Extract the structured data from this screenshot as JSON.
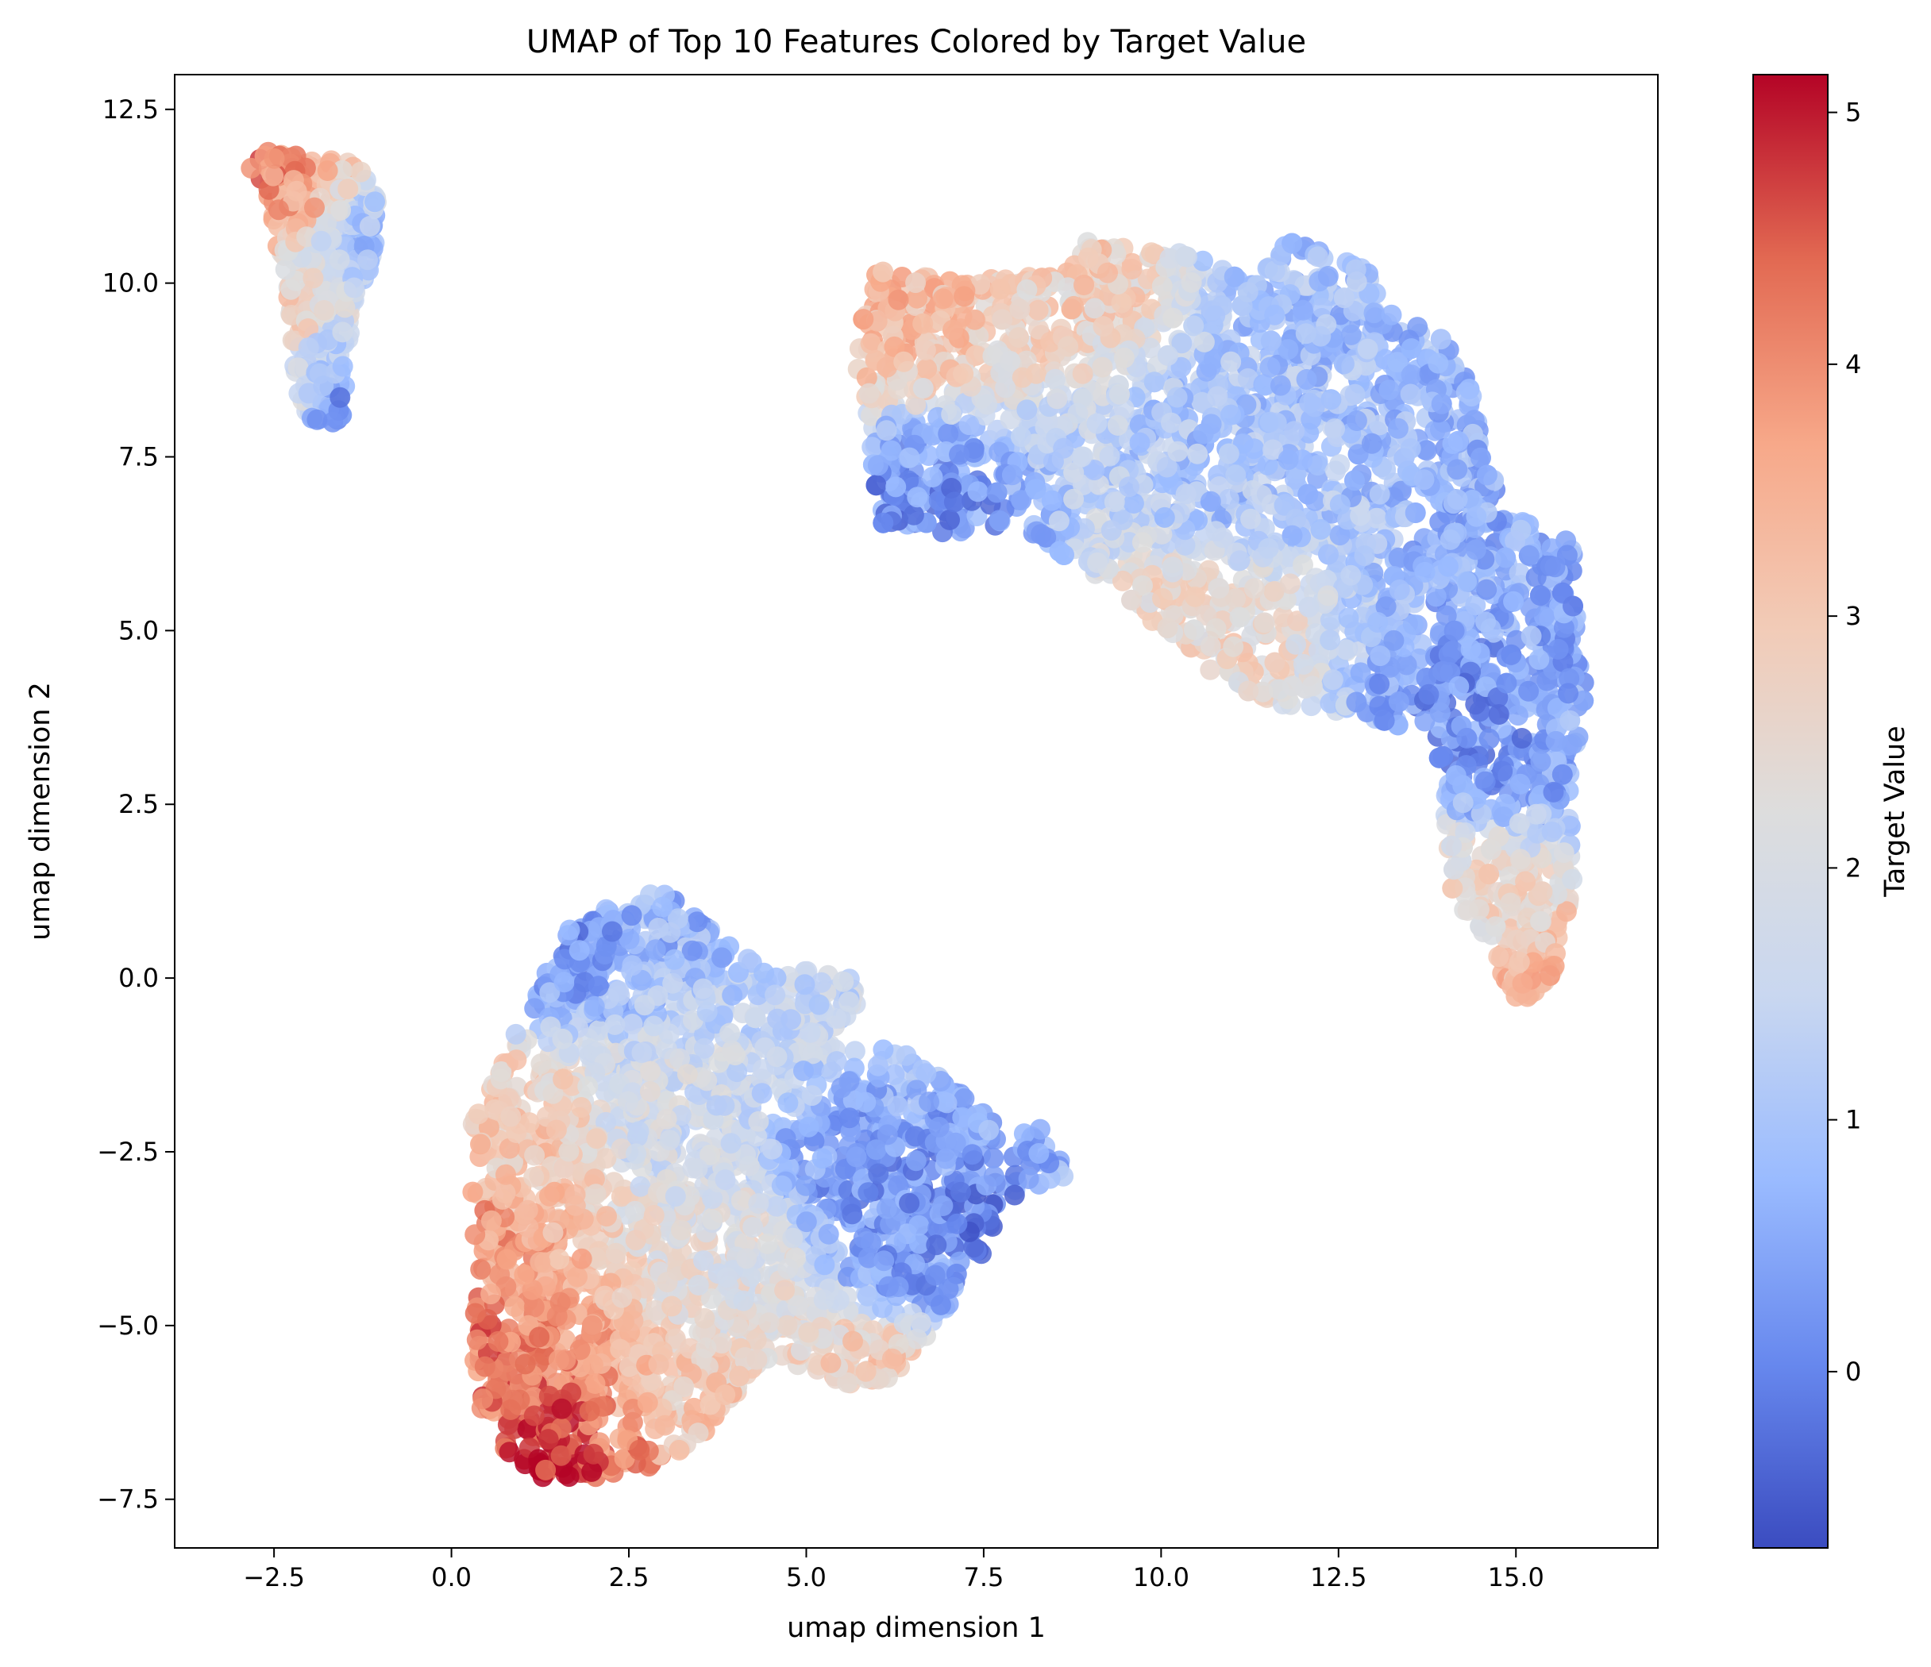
{
  "chart_data": {
    "type": "scatter",
    "title": "UMAP of Top 10 Features Colored by Target Value",
    "xlabel": "umap dimension 1",
    "ylabel": "umap dimension 2",
    "xlim": [
      -3.9,
      17.0
    ],
    "ylim": [
      -8.2,
      13.0
    ],
    "x_ticks": [
      -2.5,
      0.0,
      2.5,
      5.0,
      7.5,
      10.0,
      12.5,
      15.0
    ],
    "x_tick_labels": [
      "−2.5",
      "0.0",
      "2.5",
      "5.0",
      "7.5",
      "10.0",
      "12.5",
      "15.0"
    ],
    "y_ticks": [
      -7.5,
      -5.0,
      -2.5,
      0.0,
      2.5,
      5.0,
      7.5,
      10.0,
      12.5
    ],
    "y_tick_labels": [
      "−7.5",
      "−5.0",
      "−2.5",
      "0.0",
      "2.5",
      "5.0",
      "7.5",
      "10.0",
      "12.5"
    ],
    "grid": false,
    "colormap": "coolwarm",
    "colorbar": {
      "label": "Target Value",
      "range": [
        -0.7,
        5.15
      ],
      "ticks": [
        0,
        1,
        2,
        3,
        4,
        5
      ],
      "tick_labels": [
        "0",
        "1",
        "2",
        "3",
        "4",
        "5"
      ],
      "stops": [
        "#3b4cc0",
        "#6788ee",
        "#9abbff",
        "#c9d7f0",
        "#dddddd",
        "#f2cbb7",
        "#f7a889",
        "#e26952",
        "#b40426"
      ]
    },
    "clusters": [
      {
        "name": "top-left cluster",
        "polygon": [
          [
            -3.0,
            12.05
          ],
          [
            -2.6,
            11.9
          ],
          [
            -2.0,
            11.8
          ],
          [
            -1.35,
            11.75
          ],
          [
            -1.05,
            11.2
          ],
          [
            -1.1,
            10.3
          ],
          [
            -1.4,
            9.6
          ],
          [
            -1.55,
            8.0
          ],
          [
            -2.0,
            8.0
          ],
          [
            -2.2,
            8.4
          ],
          [
            -2.3,
            9.8
          ],
          [
            -2.5,
            10.8
          ],
          [
            -2.8,
            11.6
          ]
        ],
        "count": 450,
        "points": [
          {
            "x": -2.9,
            "y": 12.0,
            "v": 5.0
          },
          {
            "x": -2.5,
            "y": 11.7,
            "v": 4.0
          },
          {
            "x": -2.2,
            "y": 11.0,
            "v": 3.6
          },
          {
            "x": -1.8,
            "y": 10.6,
            "v": 1.8
          },
          {
            "x": -1.3,
            "y": 10.6,
            "v": 1.0
          },
          {
            "x": -2.1,
            "y": 9.5,
            "v": 2.8
          },
          {
            "x": -1.8,
            "y": 9.0,
            "v": 1.2
          },
          {
            "x": -1.7,
            "y": 8.2,
            "v": 0.1
          },
          {
            "x": -2.1,
            "y": 8.3,
            "v": 1.8
          }
        ]
      },
      {
        "name": "right cluster",
        "polygon": [
          [
            5.7,
            9.5
          ],
          [
            6.0,
            10.2
          ],
          [
            7.2,
            10.0
          ],
          [
            8.7,
            10.2
          ],
          [
            8.9,
            10.6
          ],
          [
            10.6,
            10.4
          ],
          [
            11.2,
            10.0
          ],
          [
            11.8,
            10.6
          ],
          [
            12.8,
            10.3
          ],
          [
            13.3,
            9.6
          ],
          [
            14.0,
            9.2
          ],
          [
            14.4,
            8.6
          ],
          [
            14.5,
            7.6
          ],
          [
            14.9,
            6.7
          ],
          [
            15.8,
            6.3
          ],
          [
            15.8,
            5.5
          ],
          [
            16.0,
            4.2
          ],
          [
            15.8,
            3.0
          ],
          [
            15.8,
            1.0
          ],
          [
            15.5,
            0.0
          ],
          [
            15.2,
            -0.4
          ],
          [
            14.9,
            -0.2
          ],
          [
            14.6,
            0.6
          ],
          [
            14.1,
            0.8
          ],
          [
            14.0,
            2.0
          ],
          [
            13.8,
            3.5
          ],
          [
            12.8,
            3.8
          ],
          [
            11.8,
            3.9
          ],
          [
            11.0,
            4.2
          ],
          [
            10.2,
            4.8
          ],
          [
            9.5,
            5.5
          ],
          [
            8.7,
            6.0
          ],
          [
            7.8,
            6.5
          ],
          [
            7.0,
            6.4
          ],
          [
            6.0,
            6.4
          ],
          [
            5.9,
            8.0
          ],
          [
            5.7,
            8.6
          ]
        ],
        "count": 3200,
        "points": [
          {
            "x": 6.0,
            "y": 9.8,
            "v": 3.3
          },
          {
            "x": 8.9,
            "y": 10.5,
            "v": 2.8
          },
          {
            "x": 12.0,
            "y": 10.3,
            "v": 0.9
          },
          {
            "x": 14.1,
            "y": 9.0,
            "v": 0.8
          },
          {
            "x": 15.1,
            "y": 6.6,
            "v": 0.6
          },
          {
            "x": 15.8,
            "y": 4.0,
            "v": 0.5
          },
          {
            "x": 15.2,
            "y": -0.2,
            "v": 3.2
          },
          {
            "x": 14.2,
            "y": 1.0,
            "v": 2.5
          },
          {
            "x": 10.5,
            "y": 4.8,
            "v": 2.6
          },
          {
            "x": 6.5,
            "y": 6.5,
            "v": 0.2
          },
          {
            "x": 14.5,
            "y": 3.5,
            "v": 0.2
          },
          {
            "x": 11.0,
            "y": 7.5,
            "v": 1.0
          }
        ]
      },
      {
        "name": "bottom-left cluster",
        "polygon": [
          [
            0.3,
            -3.7
          ],
          [
            0.3,
            -2.8
          ],
          [
            0.3,
            -2.0
          ],
          [
            0.7,
            -1.2
          ],
          [
            1.2,
            -0.2
          ],
          [
            1.6,
            0.7
          ],
          [
            2.5,
            1.2
          ],
          [
            3.1,
            1.2
          ],
          [
            3.5,
            0.8
          ],
          [
            4.3,
            0.2
          ],
          [
            5.1,
            0.15
          ],
          [
            5.6,
            0.0
          ],
          [
            5.8,
            -0.3
          ],
          [
            5.6,
            -0.6
          ],
          [
            5.2,
            -0.9
          ],
          [
            6.3,
            -1.0
          ],
          [
            7.0,
            -1.5
          ],
          [
            7.8,
            -2.2
          ],
          [
            8.4,
            -2.1
          ],
          [
            8.7,
            -2.8
          ],
          [
            8.3,
            -3.1
          ],
          [
            7.7,
            -3.2
          ],
          [
            7.6,
            -3.8
          ],
          [
            7.2,
            -4.4
          ],
          [
            6.8,
            -5.0
          ],
          [
            6.1,
            -6.0
          ],
          [
            5.5,
            -5.8
          ],
          [
            5.0,
            -5.6
          ],
          [
            4.3,
            -5.6
          ],
          [
            3.6,
            -6.5
          ],
          [
            3.0,
            -7.0
          ],
          [
            2.3,
            -7.2
          ],
          [
            1.3,
            -7.2
          ],
          [
            0.7,
            -6.8
          ],
          [
            0.3,
            -6.0
          ],
          [
            0.3,
            -5.0
          ],
          [
            0.4,
            -4.3
          ]
        ],
        "count": 2500,
        "points": [
          {
            "x": 1.5,
            "y": -7.1,
            "v": 5.0
          },
          {
            "x": 0.5,
            "y": -5.8,
            "v": 4.2
          },
          {
            "x": 0.3,
            "y": -3.7,
            "v": 3.8
          },
          {
            "x": 2.5,
            "y": -7.0,
            "v": 4.0
          },
          {
            "x": 3.2,
            "y": -6.5,
            "v": 3.0
          },
          {
            "x": 1.7,
            "y": 0.8,
            "v": 0.3
          },
          {
            "x": 2.8,
            "y": 1.1,
            "v": 0.7
          },
          {
            "x": 5.5,
            "y": -0.2,
            "v": 1.5
          },
          {
            "x": 5.8,
            "y": -2.8,
            "v": 0.3
          },
          {
            "x": 7.6,
            "y": -3.6,
            "v": 0.0
          },
          {
            "x": 8.6,
            "y": -2.7,
            "v": 0.6
          },
          {
            "x": 6.0,
            "y": -5.8,
            "v": 3.0
          },
          {
            "x": 1.0,
            "y": -2.5,
            "v": 3.0
          },
          {
            "x": 3.0,
            "y": -2.0,
            "v": 1.8
          },
          {
            "x": 6.5,
            "y": -4.0,
            "v": 0.3
          },
          {
            "x": 4.0,
            "y": -4.2,
            "v": 2.2
          }
        ]
      }
    ]
  }
}
